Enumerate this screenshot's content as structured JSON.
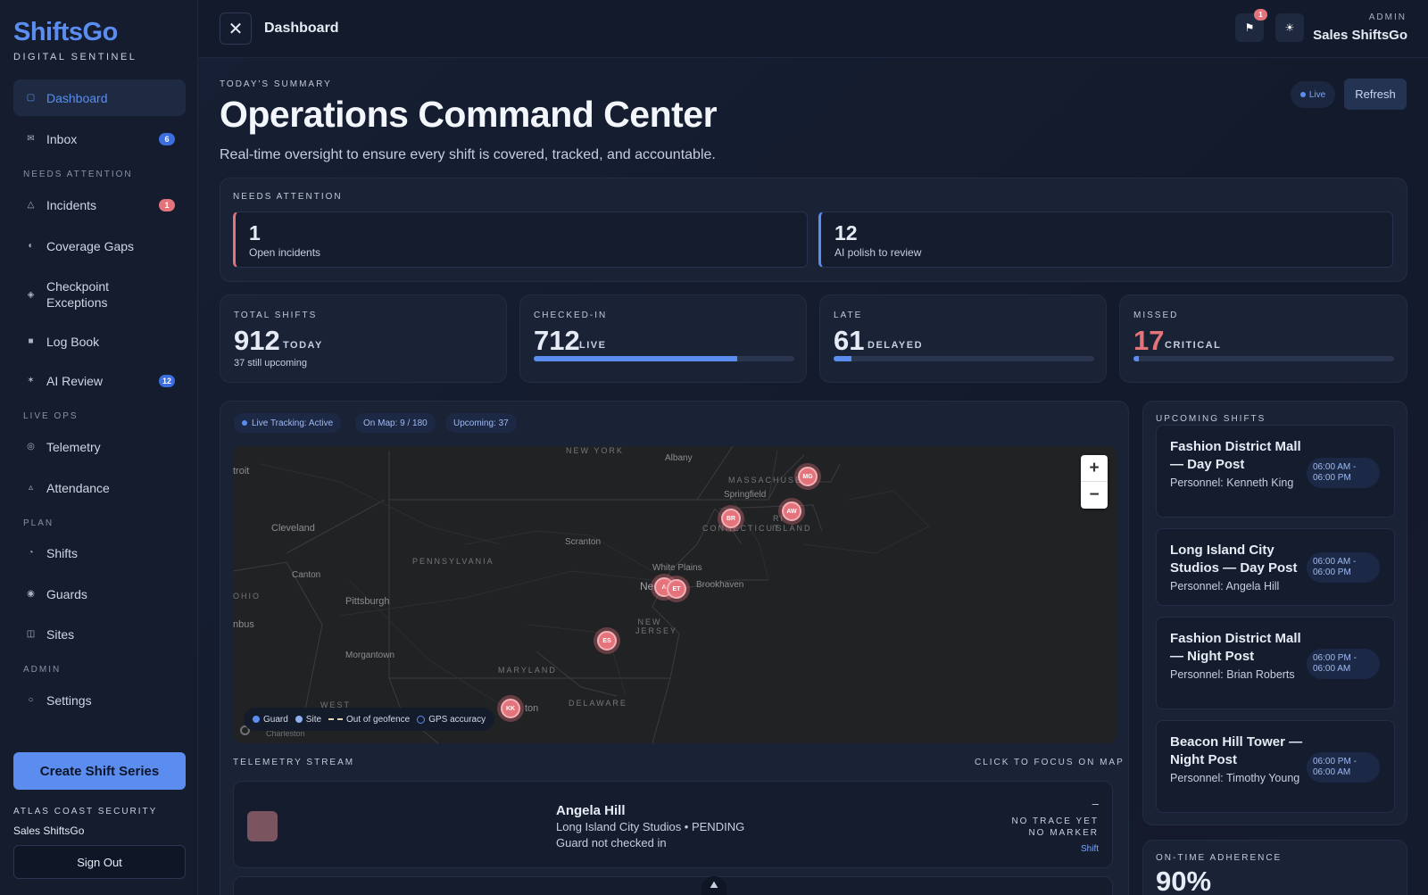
{
  "brand": {
    "name": "ShiftsGo",
    "tagline": "DIGITAL SENTINEL"
  },
  "nav": {
    "dashboard": "Dashboard",
    "inbox": "Inbox",
    "inbox_badge": "6",
    "section_attention": "NEEDS ATTENTION",
    "incidents": "Incidents",
    "incidents_badge": "1",
    "coverage_gaps": "Coverage Gaps",
    "checkpoint_exceptions": "Checkpoint Exceptions",
    "log_book": "Log Book",
    "ai_review": "AI Review",
    "ai_review_badge": "12",
    "section_live_ops": "LIVE OPS",
    "telemetry": "Telemetry",
    "attendance": "Attendance",
    "section_plan": "PLAN",
    "shifts": "Shifts",
    "guards": "Guards",
    "sites": "Sites",
    "section_admin": "ADMIN",
    "settings": "Settings"
  },
  "sidebar_footer": {
    "create_button": "Create Shift Series",
    "org_name": "ATLAS COAST SECURITY",
    "user_name": "Sales ShiftsGo",
    "sign_out": "Sign Out"
  },
  "topbar": {
    "title": "Dashboard",
    "notification_count": "1",
    "role": "ADMIN",
    "user": "Sales ShiftsGo"
  },
  "header": {
    "eyebrow": "TODAY'S SUMMARY",
    "title": "Operations Command Center",
    "subtitle": "Real-time oversight to ensure every shift is covered, tracked, and accountable.",
    "live_label": "Live",
    "refresh_label": "Refresh"
  },
  "attention": {
    "heading": "NEEDS ATTENTION",
    "cards": [
      {
        "value": "1",
        "label": "Open incidents",
        "accent": "#e5737b"
      },
      {
        "value": "12",
        "label": "AI polish to review",
        "accent": "#5b8df0"
      }
    ]
  },
  "stats": [
    {
      "caption": "TOTAL SHIFTS",
      "value": "912",
      "unit": "TODAY",
      "note": "37 still upcoming"
    },
    {
      "caption": "CHECKED-IN",
      "value": "712",
      "unit": "LIVE",
      "progress": 0.78
    },
    {
      "caption": "LATE",
      "value": "61",
      "unit": "DELAYED",
      "progress": 0.067
    },
    {
      "caption": "MISSED",
      "value": "17",
      "unit": "CRITICAL",
      "progress": 0.019
    }
  ],
  "colors": {
    "accent": "#5b8df0",
    "danger": "#e5737b",
    "missed_value": "#e5737b"
  },
  "map": {
    "chips": {
      "tracking": "Live Tracking: Active",
      "on_map": "On Map: 9 / 180",
      "upcoming": "Upcoming: 37"
    },
    "labels": {
      "new_york": "NEW YORK",
      "albany": "Albany",
      "massachusetts": "MASSACHUSETT",
      "springfield": "Springfield",
      "connecticut": "CONNECTICUT",
      "rhode_island": "ISLAND",
      "cleveland": "Cleveland",
      "scranton": "Scranton",
      "pennsylvania": "PENNSYLVANIA",
      "canton": "Canton",
      "white_plains": "White Plains",
      "brookhaven": "Brookhaven",
      "ohio": "OHIO",
      "pittsburgh": "Pittsburgh",
      "new_jersey": "NEW JERSEY",
      "columbus": "nbus",
      "morgantown": "Morgantown",
      "maryland": "MARYLAND",
      "delaware": "DELAWARE",
      "detroit": "troit",
      "ne": "Ne",
      "ton": "ton",
      "west": "WEST",
      "charleston": "Charleston",
      "ri": "RI"
    },
    "markers": [
      "MG",
      "AW",
      "BR",
      "A",
      "ET",
      "ES",
      "KK"
    ],
    "zoom_in": "+",
    "zoom_out": "−",
    "legend": {
      "guard": "Guard",
      "site": "Site",
      "geofence": "Out of geofence",
      "gps": "GPS accuracy"
    }
  },
  "telemetry": {
    "heading": "TELEMETRY STREAM",
    "hint": "CLICK TO FOCUS ON MAP",
    "items": [
      {
        "name": "Angela Hill",
        "site": "Long Island City Studios • PENDING",
        "status": "Guard not checked in",
        "dash": "–",
        "trace": "NO TRACE YET",
        "marker": "NO MARKER",
        "type": "Shift"
      }
    ]
  },
  "upcoming": {
    "heading": "UPCOMING SHIFTS",
    "items": [
      {
        "title": "Fashion District Mall — Day Post",
        "personnel": "Personnel: Kenneth King",
        "time_start": "06:00 AM -",
        "time_end": "06:00 PM"
      },
      {
        "title": "Long Island City Studios — Day Post",
        "personnel": "Personnel: Angela Hill",
        "time_start": "06:00 AM -",
        "time_end": "06:00 PM"
      },
      {
        "title": "Fashion District Mall — Night Post",
        "personnel": "Personnel: Brian Roberts",
        "time_start": "06:00 PM -",
        "time_end": "06:00 AM"
      },
      {
        "title": "Beacon Hill Tower — Night Post",
        "personnel": "Personnel: Timothy Young",
        "time_start": "06:00 PM -",
        "time_end": "06:00 AM"
      }
    ]
  },
  "adherence": {
    "heading": "ON-TIME ADHERENCE",
    "value": "90%"
  }
}
